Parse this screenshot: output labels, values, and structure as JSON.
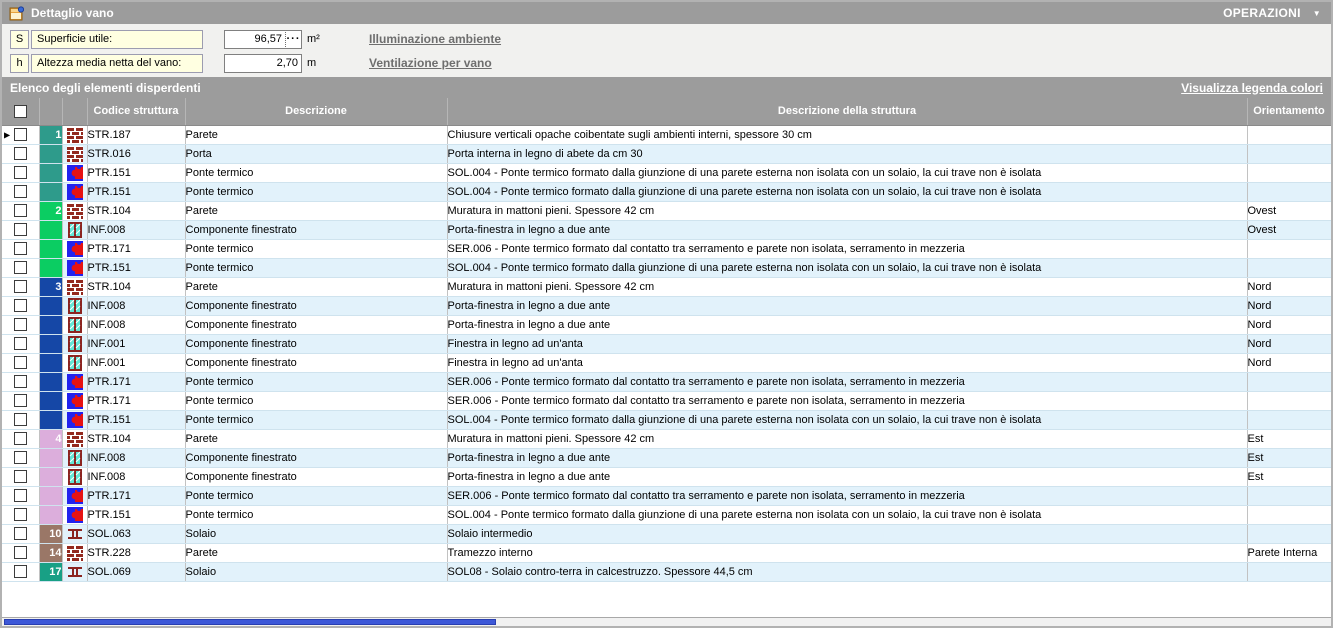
{
  "window": {
    "title": "Dettaglio vano",
    "operations_label": "OPERAZIONI",
    "operations_arrow": "▼"
  },
  "form": {
    "fields": [
      {
        "prefix": "S",
        "label": "Superficie utile:",
        "value": "96,57",
        "ellipsis": "···",
        "unit": "m²",
        "link": "Illuminazione ambiente"
      },
      {
        "prefix": "h",
        "label": "Altezza media netta del vano:",
        "value": "2,70",
        "ellipsis": "",
        "unit": "m",
        "link": "Ventilazione per vano"
      }
    ]
  },
  "section": {
    "title": "Elenco degli elementi disperdenti",
    "legend_link": "Visualizza legenda colori"
  },
  "table": {
    "pointer_glyph": "▶",
    "columns": {
      "codice": "Codice struttura",
      "descrizione": "Descrizione",
      "struttura": "Descrizione della struttura",
      "orientamento": "Orientamento"
    },
    "group_colors": {
      "teal": "#2e9b8b",
      "green": "#0bcd62",
      "blue": "#1547a6",
      "plum": "#dcaedc",
      "brown": "#9a7767",
      "jade": "#18a085"
    },
    "rows": [
      {
        "pointer": true,
        "num": "1",
        "group": "teal",
        "icon": "brick-icon",
        "code": "STR.187",
        "desc": "Parete",
        "struct": "Chiusure verticali opache coibentate sugli ambienti interni, spessore 30 cm",
        "orient": ""
      },
      {
        "num": "",
        "group": "teal",
        "icon": "brick-icon",
        "code": "STR.016",
        "desc": "Porta",
        "struct": "Porta interna in legno di abete da cm 30",
        "orient": ""
      },
      {
        "num": "",
        "group": "teal",
        "icon": "puzzle-icon",
        "code": "PTR.151",
        "desc": "Ponte termico",
        "struct": "SOL.004 - Ponte termico formato dalla giunzione di una parete esterna non isolata con un solaio, la cui trave non è isolata",
        "orient": ""
      },
      {
        "num": "",
        "group": "teal",
        "icon": "puzzle-icon",
        "code": "PTR.151",
        "desc": "Ponte termico",
        "struct": "SOL.004 - Ponte termico formato dalla giunzione di una parete esterna non isolata con un solaio, la cui trave non è isolata",
        "orient": ""
      },
      {
        "num": "2",
        "group": "green",
        "icon": "brick-icon",
        "code": "STR.104",
        "desc": "Parete",
        "struct": "Muratura in mattoni pieni. Spessore 42 cm",
        "orient": "Ovest"
      },
      {
        "num": "",
        "group": "green",
        "icon": "window-icon",
        "code": "INF.008",
        "desc": "Componente finestrato",
        "struct": "Porta-finestra in legno a due ante",
        "orient": "Ovest"
      },
      {
        "num": "",
        "group": "green",
        "icon": "puzzle-icon",
        "code": "PTR.171",
        "desc": "Ponte termico",
        "struct": "SER.006 - Ponte termico formato dal contatto tra serramento e parete non isolata, serramento in mezzeria",
        "orient": ""
      },
      {
        "num": "",
        "group": "green",
        "icon": "puzzle-icon",
        "code": "PTR.151",
        "desc": "Ponte termico",
        "struct": "SOL.004 - Ponte termico formato dalla giunzione di una parete esterna non isolata con un solaio, la cui trave non è isolata",
        "orient": ""
      },
      {
        "num": "3",
        "group": "blue",
        "icon": "brick-icon",
        "code": "STR.104",
        "desc": "Parete",
        "struct": "Muratura in mattoni pieni. Spessore 42 cm",
        "orient": "Nord"
      },
      {
        "num": "",
        "group": "blue",
        "icon": "window-icon",
        "code": "INF.008",
        "desc": "Componente finestrato",
        "struct": "Porta-finestra in legno a due ante",
        "orient": "Nord"
      },
      {
        "num": "",
        "group": "blue",
        "icon": "window-icon",
        "code": "INF.008",
        "desc": "Componente finestrato",
        "struct": "Porta-finestra in legno a due ante",
        "orient": "Nord"
      },
      {
        "num": "",
        "group": "blue",
        "icon": "window-icon",
        "code": "INF.001",
        "desc": "Componente finestrato",
        "struct": "Finestra in legno ad un'anta",
        "orient": "Nord"
      },
      {
        "num": "",
        "group": "blue",
        "icon": "window-icon",
        "code": "INF.001",
        "desc": "Componente finestrato",
        "struct": "Finestra in legno ad un'anta",
        "orient": "Nord"
      },
      {
        "num": "",
        "group": "blue",
        "icon": "puzzle-icon",
        "code": "PTR.171",
        "desc": "Ponte termico",
        "struct": "SER.006 - Ponte termico formato dal contatto tra serramento e parete non isolata, serramento in mezzeria",
        "orient": ""
      },
      {
        "num": "",
        "group": "blue",
        "icon": "puzzle-icon",
        "code": "PTR.171",
        "desc": "Ponte termico",
        "struct": "SER.006 - Ponte termico formato dal contatto tra serramento e parete non isolata, serramento in mezzeria",
        "orient": ""
      },
      {
        "num": "",
        "group": "blue",
        "icon": "puzzle-icon",
        "code": "PTR.151",
        "desc": "Ponte termico",
        "struct": "SOL.004 - Ponte termico formato dalla giunzione di una parete esterna non isolata con un solaio, la cui trave non è isolata",
        "orient": ""
      },
      {
        "num": "4",
        "group": "plum",
        "icon": "brick-icon",
        "code": "STR.104",
        "desc": "Parete",
        "struct": "Muratura in mattoni pieni. Spessore 42 cm",
        "orient": "Est"
      },
      {
        "num": "",
        "group": "plum",
        "icon": "window-icon",
        "code": "INF.008",
        "desc": "Componente finestrato",
        "struct": "Porta-finestra in legno a due ante",
        "orient": "Est"
      },
      {
        "num": "",
        "group": "plum",
        "icon": "window-icon",
        "code": "INF.008",
        "desc": "Componente finestrato",
        "struct": "Porta-finestra in legno a due ante",
        "orient": "Est"
      },
      {
        "num": "",
        "group": "plum",
        "icon": "puzzle-icon",
        "code": "PTR.171",
        "desc": "Ponte termico",
        "struct": "SER.006 - Ponte termico formato dal contatto tra serramento e parete non isolata, serramento in mezzeria",
        "orient": ""
      },
      {
        "num": "",
        "group": "plum",
        "icon": "puzzle-icon",
        "code": "PTR.151",
        "desc": "Ponte termico",
        "struct": "SOL.004 - Ponte termico formato dalla giunzione di una parete esterna non isolata con un solaio, la cui trave non è isolata",
        "orient": ""
      },
      {
        "num": "10",
        "group": "brown",
        "icon": "slab-icon",
        "code": "SOL.063",
        "desc": "Solaio",
        "struct": "Solaio intermedio",
        "orient": ""
      },
      {
        "num": "14",
        "group": "brown",
        "icon": "brick-icon",
        "code": "STR.228",
        "desc": "Parete",
        "struct": "Tramezzo interno",
        "orient": "Parete Interna"
      },
      {
        "num": "17",
        "group": "jade",
        "icon": "slab-icon",
        "code": "SOL.069",
        "desc": "Solaio",
        "struct": "SOL08 - Solaio contro-terra in calcestruzzo. Spessore 44,5 cm",
        "orient": ""
      }
    ]
  }
}
